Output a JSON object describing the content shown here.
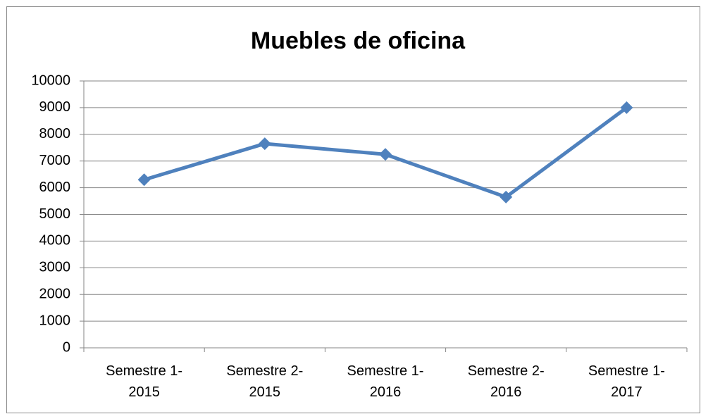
{
  "chart_data": {
    "type": "line",
    "title": "Muebles de oficina",
    "categories": [
      "Semestre 1-2015",
      "Semestre 2-2015",
      "Semestre 1-2016",
      "Semestre 2-2016",
      "Semestre 1-2017"
    ],
    "values": [
      6300,
      7650,
      7250,
      5650,
      9000
    ],
    "color": "#4f81bd",
    "ylim": [
      0,
      10000
    ],
    "yticks": [
      0,
      1000,
      2000,
      3000,
      4000,
      5000,
      6000,
      7000,
      8000,
      9000,
      10000
    ],
    "grid": true
  }
}
